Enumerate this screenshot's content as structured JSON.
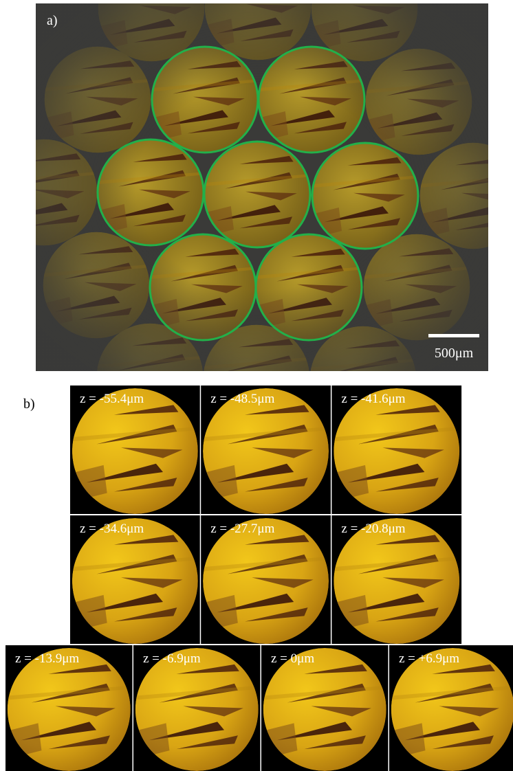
{
  "panel_a": {
    "label": "a)",
    "scale_bar": "500μm"
  },
  "panel_b": {
    "label": "b)",
    "frames": [
      {
        "label": "z = -55.4μm"
      },
      {
        "label": "z = -48.5μm"
      },
      {
        "label": "z = -41.6μm"
      },
      {
        "label": "z = -34.6μm"
      },
      {
        "label": "z = -27.7μm"
      },
      {
        "label": "z = -20.8μm"
      },
      {
        "label": "z = -13.9μm"
      },
      {
        "label": "z = -6.9μm"
      },
      {
        "label": "z = 0μm"
      },
      {
        "label": "z = +6.9μm"
      }
    ]
  }
}
